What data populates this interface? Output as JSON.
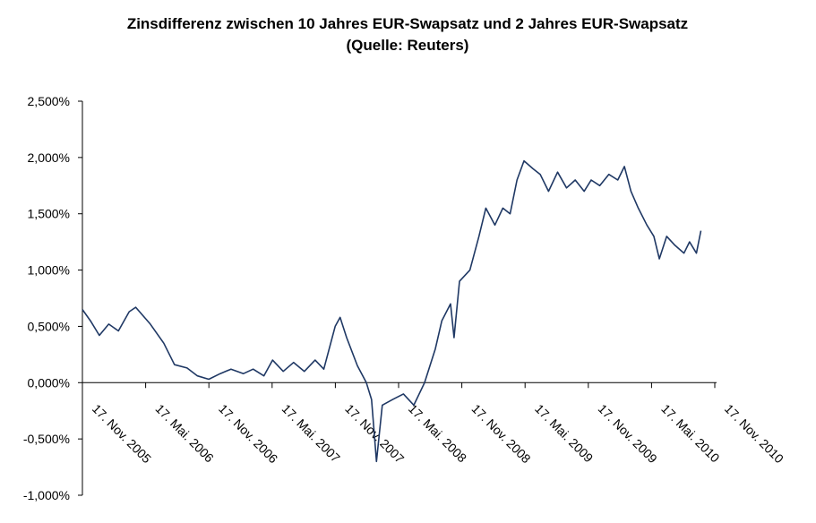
{
  "chart_data": {
    "type": "line",
    "title": "Zinsdifferenz zwischen 10 Jahres EUR-Swapsatz und 2 Jahres EUR-Swapsatz",
    "subtitle": "(Quelle: Reuters)",
    "xlabel": "",
    "ylabel": "",
    "ylim": [
      -1.0,
      2.5
    ],
    "y_ticks": [
      2.5,
      2.0,
      1.5,
      1.0,
      0.5,
      0.0,
      -0.5,
      -1.0
    ],
    "y_tick_labels": [
      "2,500%",
      "2,000%",
      "1,500%",
      "1,000%",
      "0,500%",
      "0,000%",
      "-0,500%",
      "-1,000%"
    ],
    "x_tick_labels": [
      "17. Nov. 2005",
      "17. Mai. 2006",
      "17. Nov. 2006",
      "17. Mai. 2007",
      "17. Nov. 2007",
      "17. Mai. 2008",
      "17. Nov. 2008",
      "17. Mai. 2009",
      "17. Nov. 2009",
      "17. Mai. 2010",
      "17. Nov. 2010"
    ],
    "line_color": "#1f3864",
    "grid": false,
    "series": [
      {
        "name": "",
        "points": [
          [
            "2005-11-17",
            0.65
          ],
          [
            "2005-12-10",
            0.55
          ],
          [
            "2006-01-05",
            0.42
          ],
          [
            "2006-02-01",
            0.52
          ],
          [
            "2006-03-01",
            0.46
          ],
          [
            "2006-04-01",
            0.63
          ],
          [
            "2006-04-20",
            0.67
          ],
          [
            "2006-06-01",
            0.52
          ],
          [
            "2006-07-10",
            0.35
          ],
          [
            "2006-08-10",
            0.16
          ],
          [
            "2006-09-15",
            0.13
          ],
          [
            "2006-10-15",
            0.06
          ],
          [
            "2006-11-17",
            0.03
          ],
          [
            "2006-12-20",
            0.08
          ],
          [
            "2007-01-20",
            0.12
          ],
          [
            "2007-02-25",
            0.08
          ],
          [
            "2007-03-25",
            0.12
          ],
          [
            "2007-04-25",
            0.06
          ],
          [
            "2007-05-20",
            0.2
          ],
          [
            "2007-06-20",
            0.1
          ],
          [
            "2007-07-20",
            0.18
          ],
          [
            "2007-08-20",
            0.1
          ],
          [
            "2007-09-20",
            0.2
          ],
          [
            "2007-10-15",
            0.12
          ],
          [
            "2007-11-17",
            0.5
          ],
          [
            "2007-12-01",
            0.58
          ],
          [
            "2007-12-20",
            0.4
          ],
          [
            "2008-01-20",
            0.15
          ],
          [
            "2008-02-15",
            0.0
          ],
          [
            "2008-03-01",
            -0.15
          ],
          [
            "2008-03-15",
            -0.7
          ],
          [
            "2008-04-01",
            -0.2
          ],
          [
            "2008-05-01",
            -0.15
          ],
          [
            "2008-06-01",
            -0.1
          ],
          [
            "2008-07-01",
            -0.2
          ],
          [
            "2008-08-01",
            0.0
          ],
          [
            "2008-09-01",
            0.3
          ],
          [
            "2008-09-20",
            0.55
          ],
          [
            "2008-10-15",
            0.7
          ],
          [
            "2008-10-25",
            0.4
          ],
          [
            "2008-11-10",
            0.9
          ],
          [
            "2008-12-10",
            1.0
          ],
          [
            "2009-01-05",
            1.3
          ],
          [
            "2009-01-25",
            1.55
          ],
          [
            "2009-02-20",
            1.4
          ],
          [
            "2009-03-15",
            1.55
          ],
          [
            "2009-04-05",
            1.5
          ],
          [
            "2009-04-25",
            1.8
          ],
          [
            "2009-05-15",
            1.97
          ],
          [
            "2009-06-10",
            1.9
          ],
          [
            "2009-07-01",
            1.85
          ],
          [
            "2009-07-25",
            1.7
          ],
          [
            "2009-08-20",
            1.87
          ],
          [
            "2009-09-15",
            1.73
          ],
          [
            "2009-10-10",
            1.8
          ],
          [
            "2009-11-05",
            1.7
          ],
          [
            "2009-11-25",
            1.8
          ],
          [
            "2009-12-20",
            1.75
          ],
          [
            "2010-01-15",
            1.85
          ],
          [
            "2010-02-10",
            1.8
          ],
          [
            "2010-03-01",
            1.92
          ],
          [
            "2010-03-20",
            1.7
          ],
          [
            "2010-04-10",
            1.55
          ],
          [
            "2010-05-05",
            1.4
          ],
          [
            "2010-05-25",
            1.3
          ],
          [
            "2010-06-10",
            1.1
          ],
          [
            "2010-07-01",
            1.3
          ],
          [
            "2010-07-25",
            1.22
          ],
          [
            "2010-08-20",
            1.15
          ],
          [
            "2010-09-05",
            1.25
          ],
          [
            "2010-09-25",
            1.15
          ],
          [
            "2010-10-08",
            1.35
          ]
        ]
      }
    ]
  }
}
